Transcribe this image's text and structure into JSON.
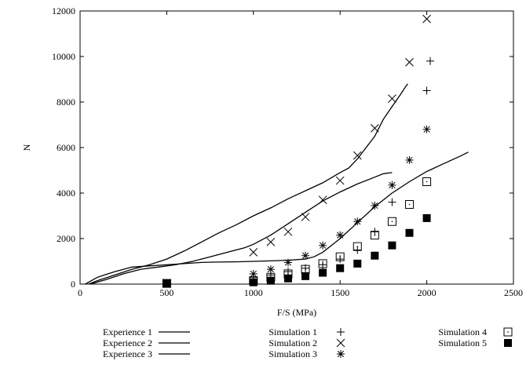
{
  "chart_data": {
    "type": "line",
    "xlabel": "F/S (MPa)",
    "ylabel": "N",
    "xlim": [
      0,
      2500
    ],
    "ylim": [
      0,
      12000
    ],
    "xticks": [
      0,
      500,
      1000,
      1500,
      2000,
      2500
    ],
    "yticks": [
      0,
      2000,
      4000,
      6000,
      8000,
      10000,
      12000
    ],
    "grid": false,
    "legend_placement": "below",
    "series": [
      {
        "name": "Experience 1",
        "kind": "line",
        "x": [
          50,
          100,
          200,
          300,
          400,
          500,
          600,
          700,
          800,
          900,
          1000,
          1100,
          1200,
          1300,
          1400,
          1500,
          1550,
          1600,
          1700,
          1750,
          1800,
          1850,
          1880,
          1890
        ],
        "y": [
          0,
          150,
          400,
          650,
          850,
          1100,
          1450,
          1850,
          2250,
          2600,
          3000,
          3350,
          3750,
          4100,
          4450,
          4900,
          5100,
          5500,
          6500,
          7250,
          7800,
          8350,
          8700,
          8800
        ]
      },
      {
        "name": "Experience 2",
        "kind": "line",
        "x": [
          60,
          150,
          250,
          350,
          450,
          550,
          650,
          750,
          850,
          950,
          1000,
          1100,
          1200,
          1300,
          1400,
          1500,
          1600,
          1700,
          1750,
          1800
        ],
        "y": [
          0,
          200,
          450,
          650,
          750,
          850,
          1000,
          1200,
          1400,
          1600,
          1750,
          2150,
          2650,
          3150,
          3650,
          4050,
          4400,
          4700,
          4850,
          4900
        ]
      },
      {
        "name": "Experience 3",
        "kind": "line",
        "x": [
          30,
          100,
          200,
          300,
          400,
          500,
          600,
          700,
          800,
          900,
          1000,
          1100,
          1200,
          1300,
          1350,
          1400,
          1450,
          1500,
          1600,
          1700,
          1800,
          1900,
          2000,
          2100,
          2200,
          2240
        ],
        "y": [
          0,
          300,
          550,
          750,
          800,
          850,
          900,
          950,
          970,
          980,
          1000,
          1020,
          1050,
          1100,
          1200,
          1400,
          1700,
          2000,
          2700,
          3400,
          4000,
          4500,
          4950,
          5300,
          5650,
          5800
        ]
      },
      {
        "name": "Simulation 1",
        "kind": "points",
        "marker": "plus",
        "x": [
          500,
          1000,
          1100,
          1200,
          1300,
          1400,
          1500,
          1600,
          1700,
          1800,
          2000,
          2020
        ],
        "y": [
          50,
          300,
          400,
          550,
          700,
          850,
          1100,
          1500,
          2300,
          3600,
          8500,
          9800
        ]
      },
      {
        "name": "Simulation 2",
        "kind": "points",
        "marker": "cross",
        "x": [
          500,
          1000,
          1100,
          1200,
          1300,
          1400,
          1500,
          1600,
          1700,
          1800,
          1900,
          2000
        ],
        "y": [
          50,
          1400,
          1850,
          2300,
          2950,
          3700,
          4550,
          5650,
          6850,
          8150,
          9750,
          11650
        ]
      },
      {
        "name": "Simulation 3",
        "kind": "points",
        "marker": "star",
        "x": [
          500,
          1000,
          1100,
          1200,
          1300,
          1400,
          1500,
          1600,
          1700,
          1800,
          1900,
          2000
        ],
        "y": [
          50,
          450,
          650,
          950,
          1250,
          1700,
          2150,
          2750,
          3450,
          4350,
          5450,
          6800
        ]
      },
      {
        "name": "Simulation 4",
        "kind": "points",
        "marker": "dotted-square",
        "x": [
          500,
          1000,
          1100,
          1200,
          1300,
          1400,
          1500,
          1600,
          1700,
          1800,
          1900,
          2000
        ],
        "y": [
          30,
          150,
          300,
          450,
          650,
          900,
          1200,
          1650,
          2150,
          2750,
          3500,
          4500
        ]
      },
      {
        "name": "Simulation 5",
        "kind": "points",
        "marker": "filled-square",
        "x": [
          500,
          1000,
          1100,
          1200,
          1300,
          1400,
          1500,
          1600,
          1700,
          1800,
          1900,
          2000
        ],
        "y": [
          30,
          80,
          150,
          250,
          350,
          500,
          700,
          900,
          1250,
          1700,
          2250,
          2900
        ]
      }
    ]
  }
}
